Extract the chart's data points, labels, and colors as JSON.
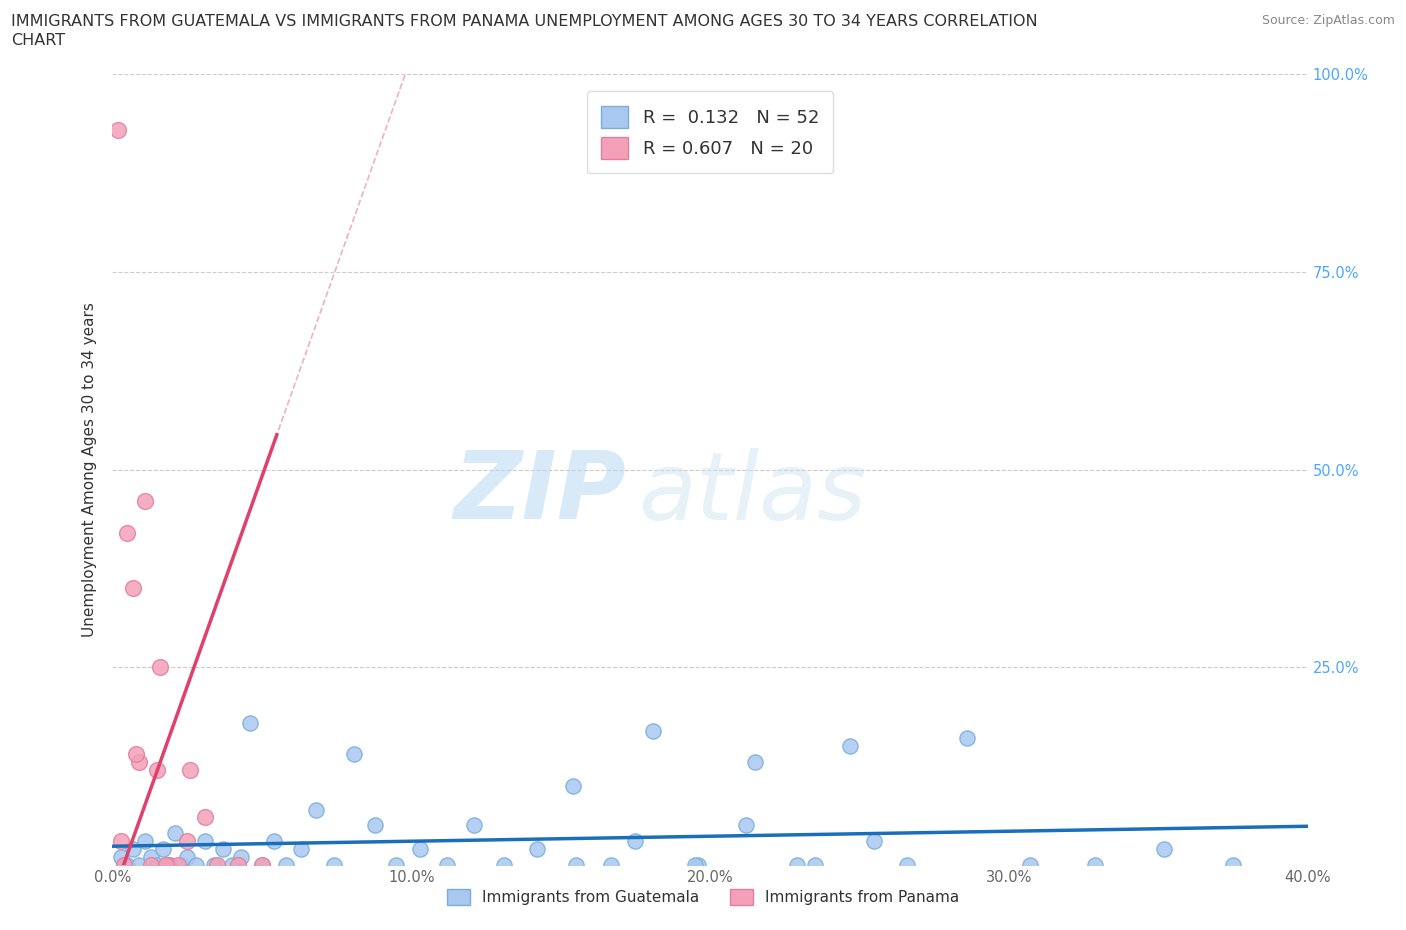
{
  "title_line1": "IMMIGRANTS FROM GUATEMALA VS IMMIGRANTS FROM PANAMA UNEMPLOYMENT AMONG AGES 30 TO 34 YEARS CORRELATION",
  "title_line2": "CHART",
  "source": "Source: ZipAtlas.com",
  "xlabel_label": "Immigrants from Guatemala",
  "xlabel_label2": "Immigrants from Panama",
  "ylabel": "Unemployment Among Ages 30 to 34 years",
  "xlim": [
    0.0,
    0.4
  ],
  "ylim": [
    0.0,
    1.0
  ],
  "xticks": [
    0.0,
    0.1,
    0.2,
    0.3,
    0.4
  ],
  "xtick_labels": [
    "0.0%",
    "10.0%",
    "20.0%",
    "30.0%",
    "40.0%"
  ],
  "yticks": [
    0.0,
    0.25,
    0.5,
    0.75,
    1.0
  ],
  "ytick_labels": [
    "",
    "25.0%",
    "50.0%",
    "75.0%",
    "100.0%"
  ],
  "guatemala_color": "#a8c8f0",
  "guatemala_edge": "#7aaed8",
  "panama_color": "#f4a0b8",
  "panama_edge": "#e080a0",
  "trend_guatemala_color": "#1a6fbd",
  "trend_panama_color": "#e0406a",
  "trend_panama_dash_color": "#f0b0c0",
  "R_guatemala": 0.132,
  "N_guatemala": 52,
  "R_panama": 0.607,
  "N_panama": 20,
  "watermark_zip": "ZIP",
  "watermark_atlas": "atlas",
  "guatemala_x": [
    0.003,
    0.005,
    0.007,
    0.009,
    0.011,
    0.013,
    0.015,
    0.017,
    0.019,
    0.021,
    0.023,
    0.025,
    0.028,
    0.031,
    0.034,
    0.037,
    0.04,
    0.043,
    0.046,
    0.05,
    0.054,
    0.058,
    0.063,
    0.068,
    0.074,
    0.081,
    0.088,
    0.095,
    0.103,
    0.112,
    0.121,
    0.131,
    0.142,
    0.154,
    0.167,
    0.181,
    0.196,
    0.212,
    0.229,
    0.247,
    0.266,
    0.286,
    0.307,
    0.329,
    0.352,
    0.375,
    0.155,
    0.175,
    0.195,
    0.215,
    0.235,
    0.255
  ],
  "guatemala_y": [
    0.01,
    0.0,
    0.02,
    0.0,
    0.03,
    0.01,
    0.0,
    0.02,
    0.0,
    0.04,
    0.0,
    0.01,
    0.0,
    0.03,
    0.0,
    0.02,
    0.0,
    0.01,
    0.18,
    0.0,
    0.03,
    0.0,
    0.02,
    0.07,
    0.0,
    0.14,
    0.05,
    0.0,
    0.02,
    0.0,
    0.05,
    0.0,
    0.02,
    0.1,
    0.0,
    0.17,
    0.0,
    0.05,
    0.0,
    0.15,
    0.0,
    0.16,
    0.0,
    0.0,
    0.02,
    0.0,
    0.0,
    0.03,
    0.0,
    0.13,
    0.0,
    0.03
  ],
  "panama_x": [
    0.002,
    0.004,
    0.005,
    0.007,
    0.009,
    0.011,
    0.013,
    0.016,
    0.019,
    0.003,
    0.022,
    0.026,
    0.031,
    0.008,
    0.042,
    0.015,
    0.018,
    0.025,
    0.035,
    0.05
  ],
  "panama_y": [
    0.93,
    0.0,
    0.42,
    0.35,
    0.13,
    0.46,
    0.0,
    0.25,
    0.0,
    0.03,
    0.0,
    0.12,
    0.06,
    0.14,
    0.0,
    0.12,
    0.0,
    0.03,
    0.0,
    0.0
  ]
}
